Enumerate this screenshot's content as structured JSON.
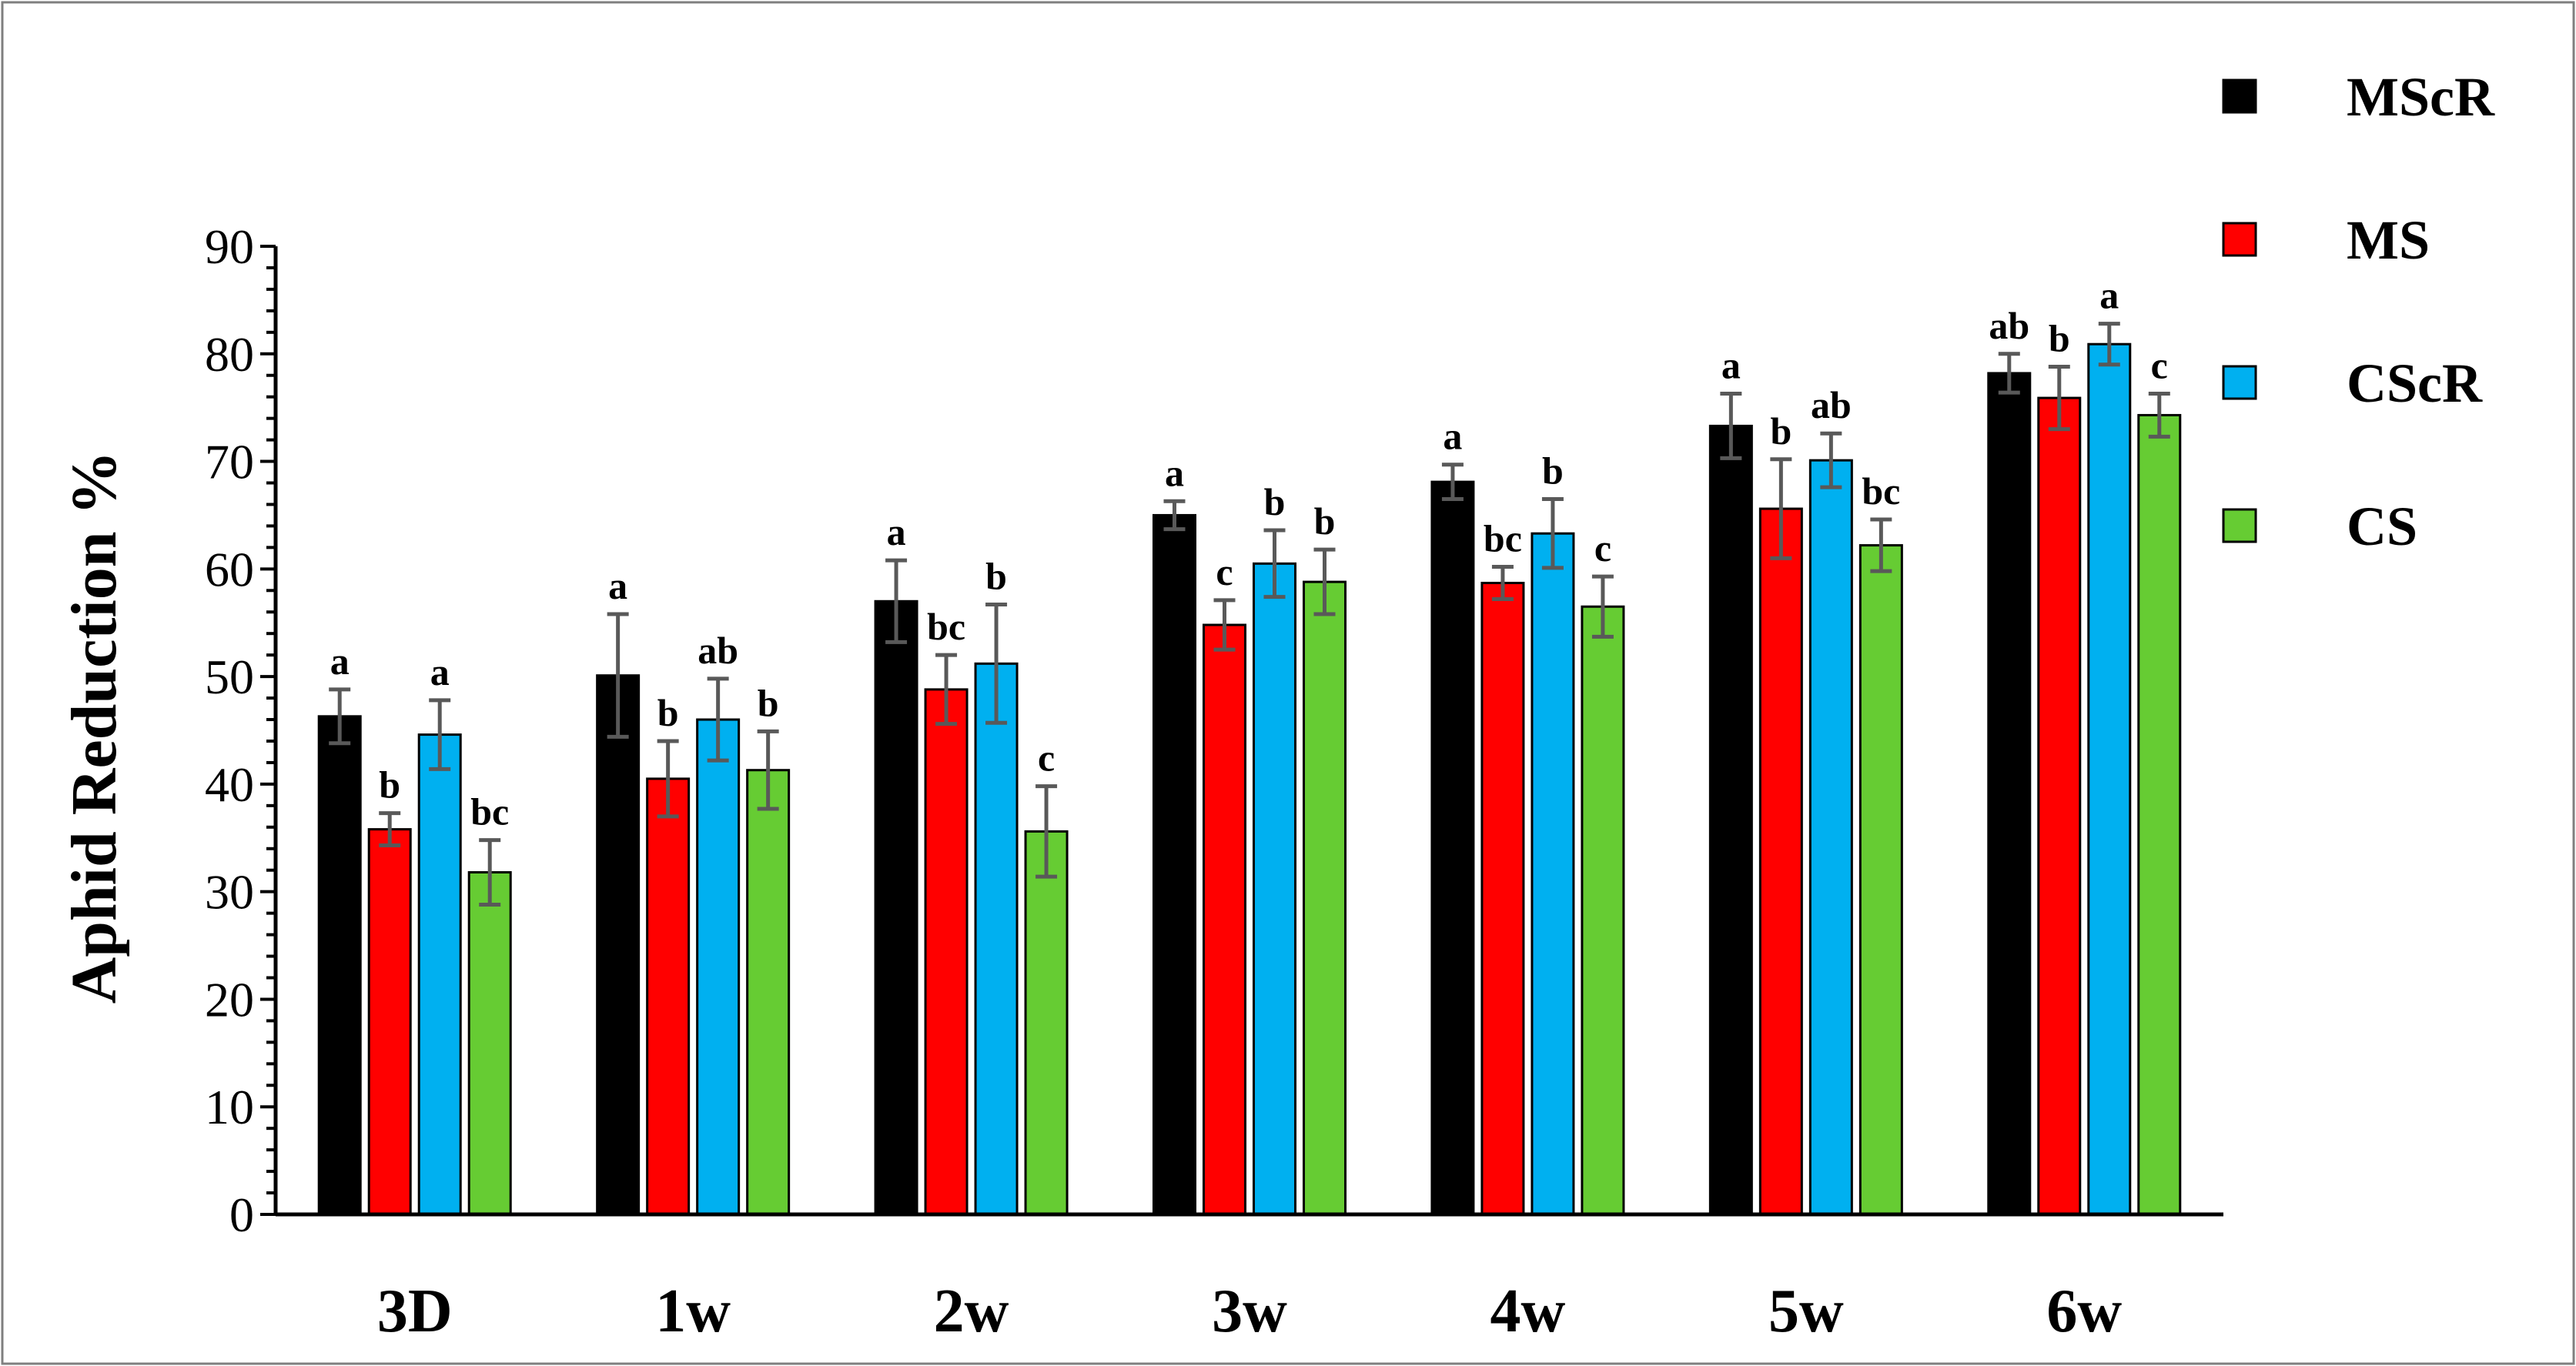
{
  "chart_data": {
    "type": "bar",
    "title": "",
    "xlabel": "",
    "ylabel": "Aphid Reduction  %",
    "ylim": [
      0,
      90
    ],
    "yticks": [
      0,
      10,
      20,
      30,
      40,
      50,
      60,
      70,
      80,
      90
    ],
    "grid": false,
    "legend_position": "top-right",
    "categories": [
      "3D",
      "1w",
      "2w",
      "3w",
      "4w",
      "5w",
      "6w"
    ],
    "series": [
      {
        "name": "MScR",
        "color": "#000000",
        "values": [
          46.3,
          50.1,
          57.0,
          65.0,
          68.1,
          73.3,
          78.2
        ],
        "errors": [
          2.5,
          5.7,
          3.8,
          1.3,
          1.6,
          3.0,
          1.8
        ],
        "letters": [
          "a",
          "a",
          "a",
          "a",
          "a",
          "a",
          "ab"
        ]
      },
      {
        "name": "MS",
        "color": "#ff0000",
        "values": [
          35.8,
          40.5,
          48.8,
          54.8,
          58.7,
          65.6,
          75.9
        ],
        "errors": [
          1.5,
          3.5,
          3.2,
          2.3,
          1.5,
          4.6,
          2.9
        ],
        "letters": [
          "b",
          "b",
          "bc",
          "c",
          "bc",
          "b",
          "b"
        ]
      },
      {
        "name": "CScR",
        "color": "#00b0f0",
        "values": [
          44.6,
          46.0,
          51.2,
          60.5,
          63.3,
          70.1,
          80.9
        ],
        "errors": [
          3.2,
          3.8,
          5.5,
          3.1,
          3.2,
          2.5,
          1.9
        ],
        "letters": [
          "a",
          "ab",
          "b",
          "b",
          "b",
          "ab",
          "a"
        ]
      },
      {
        "name": "CS",
        "color": "#66cc33",
        "values": [
          31.8,
          41.3,
          35.6,
          58.8,
          56.5,
          62.2,
          74.3
        ],
        "errors": [
          3.0,
          3.6,
          4.2,
          3.0,
          2.8,
          2.4,
          2.0
        ],
        "letters": [
          "bc",
          "b",
          "c",
          "b",
          "c",
          "bc",
          "c"
        ]
      }
    ]
  }
}
